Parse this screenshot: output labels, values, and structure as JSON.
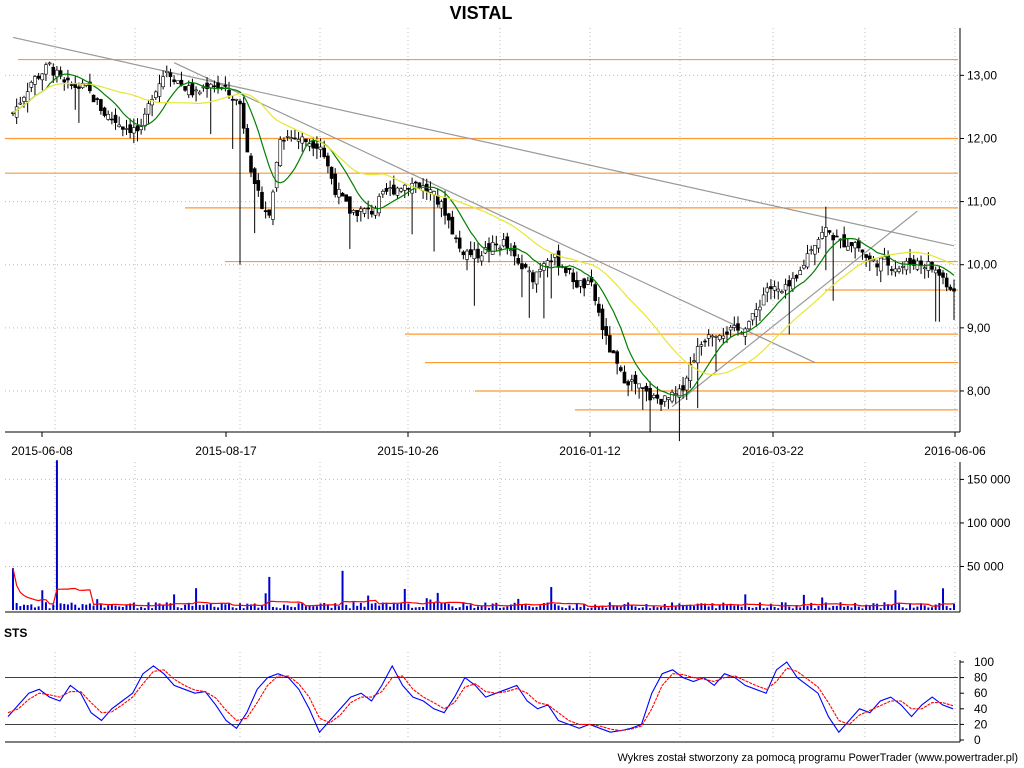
{
  "chart_data": [
    {
      "type": "candlestick",
      "title": "VISTAL",
      "x_tick_labels": [
        "2015-06-08",
        "2015-08-17",
        "2015-10-26",
        "2016-01-12",
        "2016-03-22",
        "2016-06-06"
      ],
      "y_tick_labels": [
        "13,00",
        "12,00",
        "11,00",
        "10,00",
        "9,00",
        "8,00"
      ],
      "y_ticks": [
        13,
        12,
        11,
        10,
        9,
        8
      ],
      "ylim": [
        7.35,
        13.75
      ],
      "grid": true,
      "support_resistance_levels": [
        13.25,
        12.0,
        11.45,
        10.9,
        10.05,
        9.6,
        8.9,
        8.45,
        8.0,
        7.7
      ],
      "trendlines": [
        {
          "from": [
            0,
            13.6
          ],
          "to": [
            257,
            10.3
          ]
        },
        {
          "from": [
            44,
            13.2
          ],
          "to": [
            219,
            8.45
          ]
        },
        {
          "from": [
            180,
            7.75
          ],
          "to": [
            247,
            10.85
          ]
        }
      ],
      "series": [
        {
          "name": "",
          "color": "#008000",
          "period": 10
        },
        {
          "name": "",
          "color": "#e6e633",
          "period": 30
        }
      ],
      "close_path": [
        [
          0,
          12.4
        ],
        [
          5,
          12.9
        ],
        [
          10,
          13.15
        ],
        [
          14,
          12.85
        ],
        [
          20,
          12.8
        ],
        [
          25,
          12.4
        ],
        [
          30,
          12.2
        ],
        [
          35,
          12.1
        ],
        [
          38,
          12.7
        ],
        [
          42,
          13.1
        ],
        [
          46,
          12.85
        ],
        [
          50,
          12.7
        ],
        [
          54,
          12.9
        ],
        [
          58,
          12.75
        ],
        [
          62,
          12.55
        ],
        [
          66,
          11.2
        ],
        [
          70,
          10.75
        ],
        [
          73,
          12.05
        ],
        [
          78,
          12.0
        ],
        [
          84,
          11.9
        ],
        [
          88,
          11.2
        ],
        [
          92,
          10.85
        ],
        [
          98,
          10.85
        ],
        [
          102,
          11.15
        ],
        [
          106,
          11.25
        ],
        [
          110,
          11.3
        ],
        [
          114,
          11.15
        ],
        [
          118,
          10.85
        ],
        [
          122,
          10.25
        ],
        [
          126,
          10.15
        ],
        [
          130,
          10.25
        ],
        [
          134,
          10.35
        ],
        [
          138,
          10.0
        ],
        [
          142,
          9.8
        ],
        [
          146,
          10.15
        ],
        [
          150,
          10.0
        ],
        [
          154,
          9.7
        ],
        [
          158,
          9.65
        ],
        [
          162,
          8.8
        ],
        [
          166,
          8.25
        ],
        [
          170,
          8.1
        ],
        [
          174,
          7.9
        ],
        [
          178,
          7.85
        ],
        [
          182,
          7.95
        ],
        [
          186,
          8.55
        ],
        [
          190,
          8.95
        ],
        [
          194,
          8.95
        ],
        [
          198,
          8.95
        ],
        [
          202,
          9.15
        ],
        [
          206,
          9.65
        ],
        [
          210,
          9.55
        ],
        [
          214,
          9.75
        ],
        [
          218,
          10.3
        ],
        [
          222,
          10.55
        ],
        [
          226,
          10.35
        ],
        [
          230,
          10.35
        ],
        [
          234,
          10.05
        ],
        [
          238,
          10.05
        ],
        [
          242,
          9.95
        ],
        [
          246,
          10.05
        ],
        [
          250,
          10.0
        ],
        [
          253,
          9.85
        ],
        [
          256,
          9.65
        ]
      ]
    },
    {
      "type": "bar",
      "title": "",
      "y_tick_labels": [
        "150 000",
        "100 000",
        "50 000"
      ],
      "y_ticks": [
        150000,
        100000,
        50000
      ],
      "ylim": [
        0,
        170000
      ],
      "grid": true,
      "series": [
        {
          "name": "",
          "color": "#0000cc",
          "kind": "volume"
        },
        {
          "name": "",
          "color": "#ff0000",
          "kind": "average"
        }
      ],
      "spikes": [
        [
          0,
          48000
        ],
        [
          12,
          172000
        ],
        [
          70,
          38000
        ],
        [
          90,
          45000
        ]
      ],
      "typical_volume": 6000
    },
    {
      "type": "line",
      "title": "STS",
      "y_tick_labels": [
        "100",
        "80",
        "60",
        "40",
        "20",
        "0"
      ],
      "y_ticks": [
        100,
        80,
        60,
        40,
        20,
        0
      ],
      "ylim": [
        0,
        100
      ],
      "reference_lines": [
        80,
        20
      ],
      "series": [
        {
          "name": "",
          "color": "#0000ff",
          "values": [
            30,
            45,
            60,
            65,
            55,
            50,
            70,
            60,
            35,
            25,
            40,
            50,
            60,
            85,
            95,
            85,
            70,
            65,
            60,
            62,
            45,
            25,
            15,
            35,
            65,
            80,
            85,
            80,
            65,
            40,
            10,
            25,
            40,
            55,
            60,
            50,
            70,
            95,
            70,
            55,
            50,
            40,
            35,
            55,
            80,
            70,
            55,
            60,
            65,
            70,
            50,
            40,
            45,
            25,
            20,
            15,
            20,
            15,
            10,
            12,
            15,
            20,
            60,
            85,
            90,
            80,
            75,
            80,
            70,
            85,
            80,
            70,
            65,
            60,
            90,
            100,
            80,
            70,
            60,
            30,
            10,
            25,
            40,
            35,
            50,
            55,
            45,
            30,
            45,
            55,
            45,
            40
          ]
        },
        {
          "name": "",
          "color": "#ff0000",
          "values": [
            35,
            40,
            52,
            60,
            58,
            55,
            62,
            62,
            48,
            35,
            36,
            45,
            55,
            72,
            88,
            90,
            78,
            70,
            64,
            62,
            54,
            38,
            25,
            28,
            48,
            70,
            82,
            82,
            72,
            55,
            28,
            22,
            32,
            48,
            55,
            55,
            62,
            80,
            82,
            65,
            55,
            48,
            40,
            48,
            68,
            72,
            62,
            60,
            62,
            66,
            60,
            48,
            45,
            35,
            25,
            20,
            20,
            18,
            14,
            12,
            14,
            18,
            40,
            70,
            85,
            84,
            80,
            78,
            75,
            80,
            82,
            76,
            70,
            65,
            75,
            92,
            88,
            78,
            68,
            48,
            25,
            20,
            32,
            38,
            44,
            50,
            50,
            40,
            40,
            48,
            48,
            44
          ]
        }
      ]
    }
  ],
  "footer": "Wykres został stworzony za pomocą programu PowerTrader (www.powertrader.pl)",
  "colors": {
    "candle_up": "#008000",
    "candle_down": "#000000",
    "level": "#ff9933",
    "trend": "#999999",
    "grid": "#bbbbbb"
  }
}
